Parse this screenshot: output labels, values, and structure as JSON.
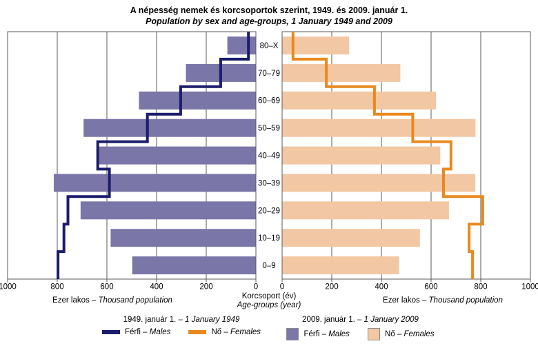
{
  "title": {
    "hu": "A népesség nemek és korcsoportok szerint, 1949. és 2009. január 1.",
    "en": "Population by sex and age-groups, 1 January 1949 and 2009"
  },
  "axis": {
    "left_caption_hu": "Ezer lakos –",
    "left_caption_en": "Thousand population",
    "mid_caption_hu": "Korcsoport (év)",
    "mid_caption_en": "Age-groups (year)",
    "right_caption_hu": "Ezer lakos –",
    "right_caption_en": "Thousand population"
  },
  "legend": {
    "y1949": {
      "hu": "1949. január 1. –",
      "en": "1 January 1949"
    },
    "y2009": {
      "hu": "2009. január 1. –",
      "en": "1 January 2009"
    },
    "males": {
      "hu": "Férfi –",
      "en": "Males"
    },
    "females": {
      "hu": "Nő –",
      "en": "Females"
    }
  },
  "colors": {
    "grid": "#595959",
    "text": "#000000",
    "males_1949_line": "#1c1c6c",
    "females_1949_line": "#e8891f",
    "males_2009_bar": "#7a76a8",
    "females_2009_bar": "#f2c7a3"
  },
  "chart_data": {
    "type": "bar",
    "subtype": "population-pyramid-with-step-lines",
    "title": "A népesség nemek és korcsoportok szerint, 1949. és 2009. január 1. / Population by sex and age-groups, 1 January 1949 and 2009",
    "unit": "thousand persons",
    "categories_top_to_bottom": [
      "80–X",
      "70–79",
      "60–69",
      "50–59",
      "40–49",
      "30–39",
      "20–29",
      "10–19",
      "0–9"
    ],
    "x_axis": {
      "max": 1000,
      "left_ticks": [
        1000,
        800,
        600,
        400,
        200,
        0
      ],
      "right_ticks": [
        0,
        200,
        400,
        600,
        800,
        1000
      ],
      "grid": true
    },
    "series": [
      {
        "id": "males2009",
        "name": "Férfi – Males, 2009. január 1.",
        "style": "bar",
        "side": "left",
        "color": "#7a76a8",
        "values": [
          115,
          282,
          471,
          694,
          634,
          814,
          706,
          585,
          498
        ]
      },
      {
        "id": "females2009",
        "name": "Nő – Females, 2009. január 1.",
        "style": "bar",
        "side": "right",
        "color": "#f2c7a3",
        "values": [
          270,
          476,
          620,
          779,
          637,
          778,
          672,
          555,
          471
        ]
      },
      {
        "id": "males1949",
        "name": "Férfi – Males, 1949. január 1.",
        "style": "line",
        "side": "left",
        "color": "#1c1c6c",
        "values": [
          30,
          142,
          303,
          437,
          637,
          590,
          757,
          773,
          797
        ]
      },
      {
        "id": "females1949",
        "name": "Nő – Females, 1949. január 1.",
        "style": "line",
        "side": "right",
        "color": "#e8891f",
        "values": [
          44,
          178,
          372,
          526,
          680,
          650,
          808,
          753,
          767
        ]
      }
    ]
  }
}
